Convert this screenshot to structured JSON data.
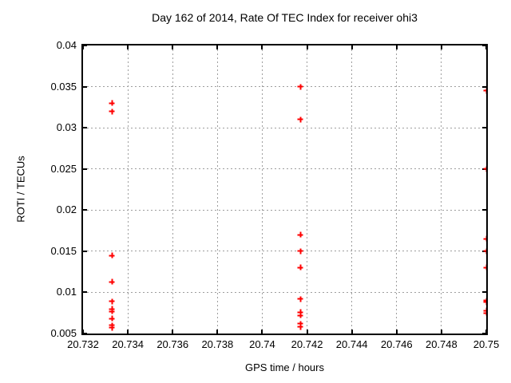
{
  "chart_data": {
    "type": "scatter",
    "title": "Day 162 of 2014, Rate Of TEC Index for receiver ohi3",
    "xlabel": "GPS time / hours",
    "ylabel": "ROTI / TECUs",
    "xlim": [
      20.732,
      20.75
    ],
    "ylim": [
      0.005,
      0.04
    ],
    "xticks": [
      {
        "value": 20.732,
        "label": "20.732"
      },
      {
        "value": 20.734,
        "label": "20.734"
      },
      {
        "value": 20.736,
        "label": "20.736"
      },
      {
        "value": 20.738,
        "label": "20.738"
      },
      {
        "value": 20.74,
        "label": "20.74"
      },
      {
        "value": 20.742,
        "label": "20.742"
      },
      {
        "value": 20.744,
        "label": "20.744"
      },
      {
        "value": 20.746,
        "label": "20.746"
      },
      {
        "value": 20.748,
        "label": "20.748"
      },
      {
        "value": 20.75,
        "label": "20.75"
      }
    ],
    "yticks": [
      {
        "value": 0.005,
        "label": "0.005"
      },
      {
        "value": 0.01,
        "label": "0.01"
      },
      {
        "value": 0.015,
        "label": "0.015"
      },
      {
        "value": 0.02,
        "label": "0.02"
      },
      {
        "value": 0.025,
        "label": "0.025"
      },
      {
        "value": 0.03,
        "label": "0.03"
      },
      {
        "value": 0.035,
        "label": "0.035"
      },
      {
        "value": 0.04,
        "label": "0.04"
      }
    ],
    "grid": true,
    "legend": "none",
    "marker": "plus",
    "colors": {
      "marker": "#ff0000",
      "axis": "#000000",
      "grid": "#9e9e9e",
      "background": "#ffffff"
    },
    "series": [
      {
        "name": "ROTI",
        "points": [
          [
            20.7333,
            0.033
          ],
          [
            20.7333,
            0.032
          ],
          [
            20.7333,
            0.0145
          ],
          [
            20.7333,
            0.0113
          ],
          [
            20.7333,
            0.0089
          ],
          [
            20.7333,
            0.008
          ],
          [
            20.7333,
            0.0077
          ],
          [
            20.7333,
            0.0068
          ],
          [
            20.7333,
            0.006
          ],
          [
            20.7333,
            0.0057
          ],
          [
            20.7417,
            0.035
          ],
          [
            20.7417,
            0.031
          ],
          [
            20.7417,
            0.017
          ],
          [
            20.7417,
            0.015
          ],
          [
            20.7417,
            0.013
          ],
          [
            20.7417,
            0.0092
          ],
          [
            20.7417,
            0.0076
          ],
          [
            20.7417,
            0.0072
          ],
          [
            20.7417,
            0.0062
          ],
          [
            20.7417,
            0.0058
          ],
          [
            20.75,
            0.0345
          ],
          [
            20.75,
            0.025
          ],
          [
            20.75,
            0.0165
          ],
          [
            20.75,
            0.015
          ],
          [
            20.75,
            0.013
          ],
          [
            20.75,
            0.009
          ],
          [
            20.75,
            0.0088
          ],
          [
            20.75,
            0.0078
          ],
          [
            20.75,
            0.0075
          ]
        ]
      }
    ]
  }
}
